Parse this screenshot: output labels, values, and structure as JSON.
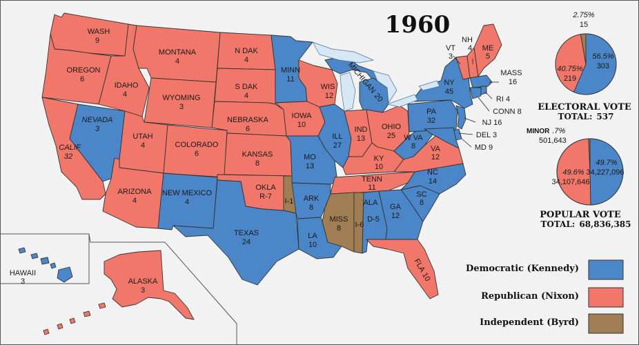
{
  "title": "1960",
  "colors": {
    "democratic": "#4a86c8",
    "republican": "#f0776a",
    "independent": "#a07d52",
    "lakes": "#d6e8f5",
    "background": "#f2f2f2"
  },
  "states": {
    "wa": [
      "WASH",
      "9"
    ],
    "or": [
      "OREGON",
      "6"
    ],
    "ca": [
      "CALIF",
      "32"
    ],
    "nv": [
      "NEVADA",
      "3"
    ],
    "id": [
      "IDAHO",
      "4"
    ],
    "mt": [
      "MONTANA",
      "4"
    ],
    "wy": [
      "WYOMING",
      "3"
    ],
    "ut": [
      "UTAH",
      "4"
    ],
    "co": [
      "COLORADO",
      "6"
    ],
    "az": [
      "ARIZONA",
      "4"
    ],
    "nm": [
      "NEW MEXICO",
      "4"
    ],
    "nd": [
      "N DAK",
      "4"
    ],
    "sd": [
      "S DAK",
      "4"
    ],
    "ne": [
      "NEBRASKA",
      "6"
    ],
    "ks": [
      "KANSAS",
      "8"
    ],
    "ok": [
      "OKLA",
      "R-7"
    ],
    "ok_ind": "I-1",
    "tx": [
      "TEXAS",
      "24"
    ],
    "mn": [
      "MINN",
      "11"
    ],
    "ia": [
      "IOWA",
      "10"
    ],
    "mo": [
      "MO",
      "13"
    ],
    "ar": [
      "ARK",
      "8"
    ],
    "la": [
      "LA",
      "10"
    ],
    "wi": [
      "WIS",
      "12"
    ],
    "il": [
      "ILL",
      "27"
    ],
    "mi": [
      "MICHIGAN",
      "20"
    ],
    "in": [
      "IND",
      "13"
    ],
    "oh": [
      "OHIO",
      "25"
    ],
    "ky": [
      "KY",
      "10"
    ],
    "tn": [
      "TENN",
      "11"
    ],
    "ms": [
      "MISS",
      "8"
    ],
    "al": [
      "ALA",
      "D-5"
    ],
    "al_ind": "I-6",
    "ga": [
      "GA",
      "12"
    ],
    "fl": [
      "FLA",
      "10"
    ],
    "sc": [
      "SC",
      "8"
    ],
    "nc": [
      "NC",
      "14"
    ],
    "va": [
      "VA",
      "12"
    ],
    "wv": [
      "W VA",
      "8"
    ],
    "pa": [
      "PA",
      "32"
    ],
    "ny": [
      "NY",
      "45"
    ],
    "vt": [
      "VT",
      "3"
    ],
    "nh": [
      "NH",
      "4"
    ],
    "me": [
      "ME",
      "5"
    ],
    "ma": [
      "MASS",
      "16"
    ],
    "ri": "RI 4",
    "ct": "CONN 8",
    "nj": "NJ 16",
    "de": "DEL 3",
    "md": "MD 9",
    "hi": [
      "HAWAII",
      "3"
    ],
    "ak": [
      "ALASKA",
      "3"
    ]
  },
  "electoral": {
    "minor_pct": "2.75%",
    "minor_votes": "15",
    "dem_pct": "56.5%",
    "dem_votes": "303",
    "rep_pct": "40.75%",
    "rep_votes": "219",
    "label": "ELECTORAL  VOTE",
    "total_label": "TOTAL:",
    "total": "537"
  },
  "popular": {
    "minor_label": "MINOR",
    "minor_pct": ".7%",
    "minor_votes": "501,643",
    "dem_pct": "49.7%",
    "dem_votes": "34,227,096",
    "rep_pct": "49.6%",
    "rep_votes": "34,107,646",
    "label": "POPULAR  VOTE",
    "total_label": "TOTAL:",
    "total": "68,836,385"
  },
  "legend": [
    {
      "label": "Democratic (Kennedy)",
      "color": "#4a86c8"
    },
    {
      "label": "Republican (Nixon)",
      "color": "#f0776a"
    },
    {
      "label": "Independent (Byrd)",
      "color": "#a07d52"
    }
  ],
  "pie_shares": {
    "electoral": {
      "dem": 0.565,
      "rep": 0.4075,
      "ind": 0.0275
    },
    "popular": {
      "dem": 0.497,
      "rep": 0.496,
      "ind": 0.007
    }
  }
}
